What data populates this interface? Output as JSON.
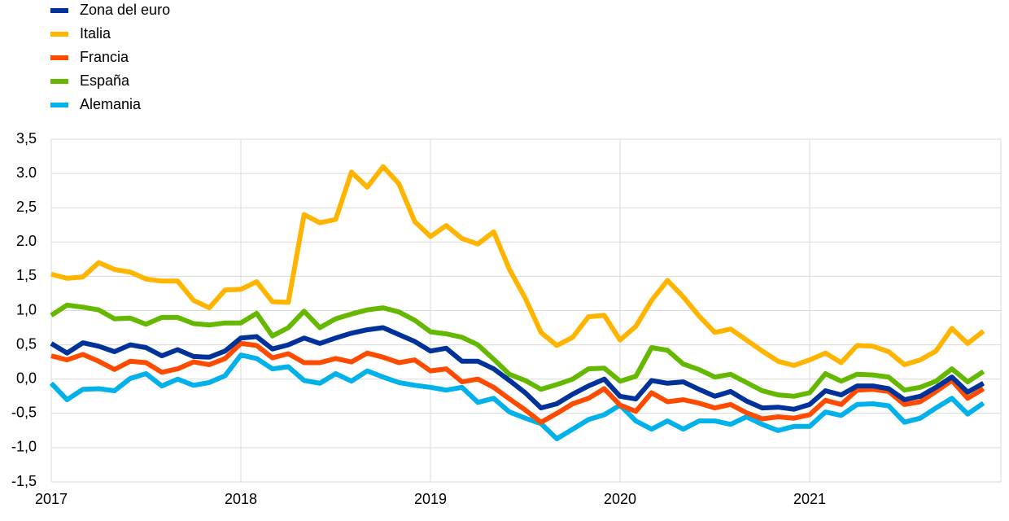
{
  "chart_data": {
    "type": "line",
    "categories": [
      "2017",
      null,
      null,
      null,
      null,
      null,
      null,
      null,
      null,
      null,
      null,
      null,
      "2018",
      null,
      null,
      null,
      null,
      null,
      null,
      null,
      null,
      null,
      null,
      null,
      "2019",
      null,
      null,
      null,
      null,
      null,
      null,
      null,
      null,
      null,
      null,
      null,
      "2020",
      null,
      null,
      null,
      null,
      null,
      null,
      null,
      null,
      null,
      null,
      null,
      "2021",
      null,
      null,
      null,
      null,
      null,
      null,
      null,
      null,
      null,
      null,
      null
    ],
    "series": [
      {
        "name": "Zona del euro",
        "color": "#003299",
        "values": [
          0.52,
          0.38,
          0.53,
          0.48,
          0.4,
          0.5,
          0.46,
          0.34,
          0.43,
          0.33,
          0.32,
          0.41,
          0.6,
          0.62,
          0.44,
          0.5,
          0.6,
          0.52,
          0.6,
          0.67,
          0.72,
          0.75,
          0.65,
          0.55,
          0.41,
          0.45,
          0.26,
          0.26,
          0.15,
          -0.02,
          -0.2,
          -0.42,
          -0.36,
          -0.22,
          -0.1,
          0.0,
          -0.25,
          -0.29,
          -0.02,
          -0.06,
          -0.04,
          -0.15,
          -0.25,
          -0.18,
          -0.32,
          -0.42,
          -0.41,
          -0.44,
          -0.37,
          -0.17,
          -0.23,
          -0.1,
          -0.1,
          -0.14,
          -0.3,
          -0.25,
          -0.12,
          0.03,
          -0.19,
          -0.06
        ]
      },
      {
        "name": "Italia",
        "color": "#ffb400",
        "values": [
          1.53,
          1.47,
          1.49,
          1.7,
          1.6,
          1.56,
          1.46,
          1.43,
          1.43,
          1.15,
          1.04,
          1.3,
          1.31,
          1.42,
          1.13,
          1.12,
          2.4,
          2.28,
          2.33,
          3.02,
          2.8,
          3.1,
          2.85,
          2.3,
          2.08,
          2.24,
          2.05,
          1.97,
          2.15,
          1.6,
          1.18,
          0.68,
          0.49,
          0.61,
          0.91,
          0.93,
          0.57,
          0.77,
          1.15,
          1.44,
          1.2,
          0.92,
          0.68,
          0.73,
          0.57,
          0.41,
          0.26,
          0.2,
          0.28,
          0.38,
          0.24,
          0.49,
          0.48,
          0.4,
          0.21,
          0.28,
          0.41,
          0.74,
          0.52,
          0.7
        ]
      },
      {
        "name": "Francia",
        "color": "#ff4b00",
        "values": [
          0.34,
          0.28,
          0.36,
          0.26,
          0.14,
          0.26,
          0.24,
          0.1,
          0.15,
          0.25,
          0.21,
          0.3,
          0.52,
          0.49,
          0.31,
          0.37,
          0.24,
          0.24,
          0.3,
          0.25,
          0.38,
          0.32,
          0.24,
          0.28,
          0.12,
          0.15,
          -0.04,
          0.0,
          -0.12,
          -0.29,
          -0.45,
          -0.63,
          -0.5,
          -0.36,
          -0.28,
          -0.14,
          -0.38,
          -0.47,
          -0.2,
          -0.33,
          -0.3,
          -0.35,
          -0.42,
          -0.37,
          -0.49,
          -0.58,
          -0.55,
          -0.57,
          -0.52,
          -0.31,
          -0.37,
          -0.16,
          -0.15,
          -0.18,
          -0.37,
          -0.33,
          -0.18,
          -0.02,
          -0.28,
          -0.14
        ]
      },
      {
        "name": "España",
        "color": "#65b800",
        "values": [
          0.93,
          1.08,
          1.05,
          1.01,
          0.88,
          0.89,
          0.8,
          0.9,
          0.9,
          0.81,
          0.79,
          0.82,
          0.82,
          0.96,
          0.63,
          0.75,
          0.99,
          0.75,
          0.88,
          0.95,
          1.01,
          1.04,
          0.98,
          0.86,
          0.69,
          0.66,
          0.61,
          0.5,
          0.29,
          0.07,
          -0.02,
          -0.15,
          -0.08,
          0.0,
          0.15,
          0.16,
          -0.03,
          0.04,
          0.46,
          0.42,
          0.22,
          0.14,
          0.03,
          0.07,
          -0.05,
          -0.17,
          -0.23,
          -0.25,
          -0.2,
          0.08,
          -0.03,
          0.07,
          0.06,
          0.03,
          -0.16,
          -0.12,
          -0.03,
          0.15,
          -0.04,
          0.11
        ]
      },
      {
        "name": "Alemania",
        "color": "#00b1ea",
        "values": [
          -0.06,
          -0.3,
          -0.15,
          -0.14,
          -0.17,
          0.01,
          0.08,
          -0.1,
          0.0,
          -0.09,
          -0.05,
          0.05,
          0.35,
          0.3,
          0.15,
          0.18,
          -0.02,
          -0.06,
          0.08,
          -0.03,
          0.12,
          0.03,
          -0.05,
          -0.09,
          -0.12,
          -0.16,
          -0.12,
          -0.34,
          -0.28,
          -0.48,
          -0.57,
          -0.65,
          -0.87,
          -0.73,
          -0.59,
          -0.52,
          -0.38,
          -0.61,
          -0.73,
          -0.61,
          -0.73,
          -0.61,
          -0.61,
          -0.66,
          -0.55,
          -0.66,
          -0.75,
          -0.69,
          -0.69,
          -0.48,
          -0.53,
          -0.37,
          -0.36,
          -0.39,
          -0.63,
          -0.57,
          -0.42,
          -0.28,
          -0.51,
          -0.35
        ]
      }
    ],
    "ylim": [
      -1.5,
      3.5
    ],
    "yticks": [
      {
        "value": -1.5,
        "label": "-1,5"
      },
      {
        "value": -1.0,
        "label": "-1,0"
      },
      {
        "value": -0.5,
        "label": "-0,5"
      },
      {
        "value": 0.0,
        "label": "0,0"
      },
      {
        "value": 0.5,
        "label": "0,5"
      },
      {
        "value": 1.0,
        "label": "1,0"
      },
      {
        "value": 1.5,
        "label": "1,5"
      },
      {
        "value": 2.0,
        "label": "2.0"
      },
      {
        "value": 2.5,
        "label": "2,5"
      },
      {
        "value": 3.0,
        "label": "3.0"
      },
      {
        "value": 3.5,
        "label": "3,5"
      }
    ],
    "grid": true,
    "legend": "top-left"
  }
}
